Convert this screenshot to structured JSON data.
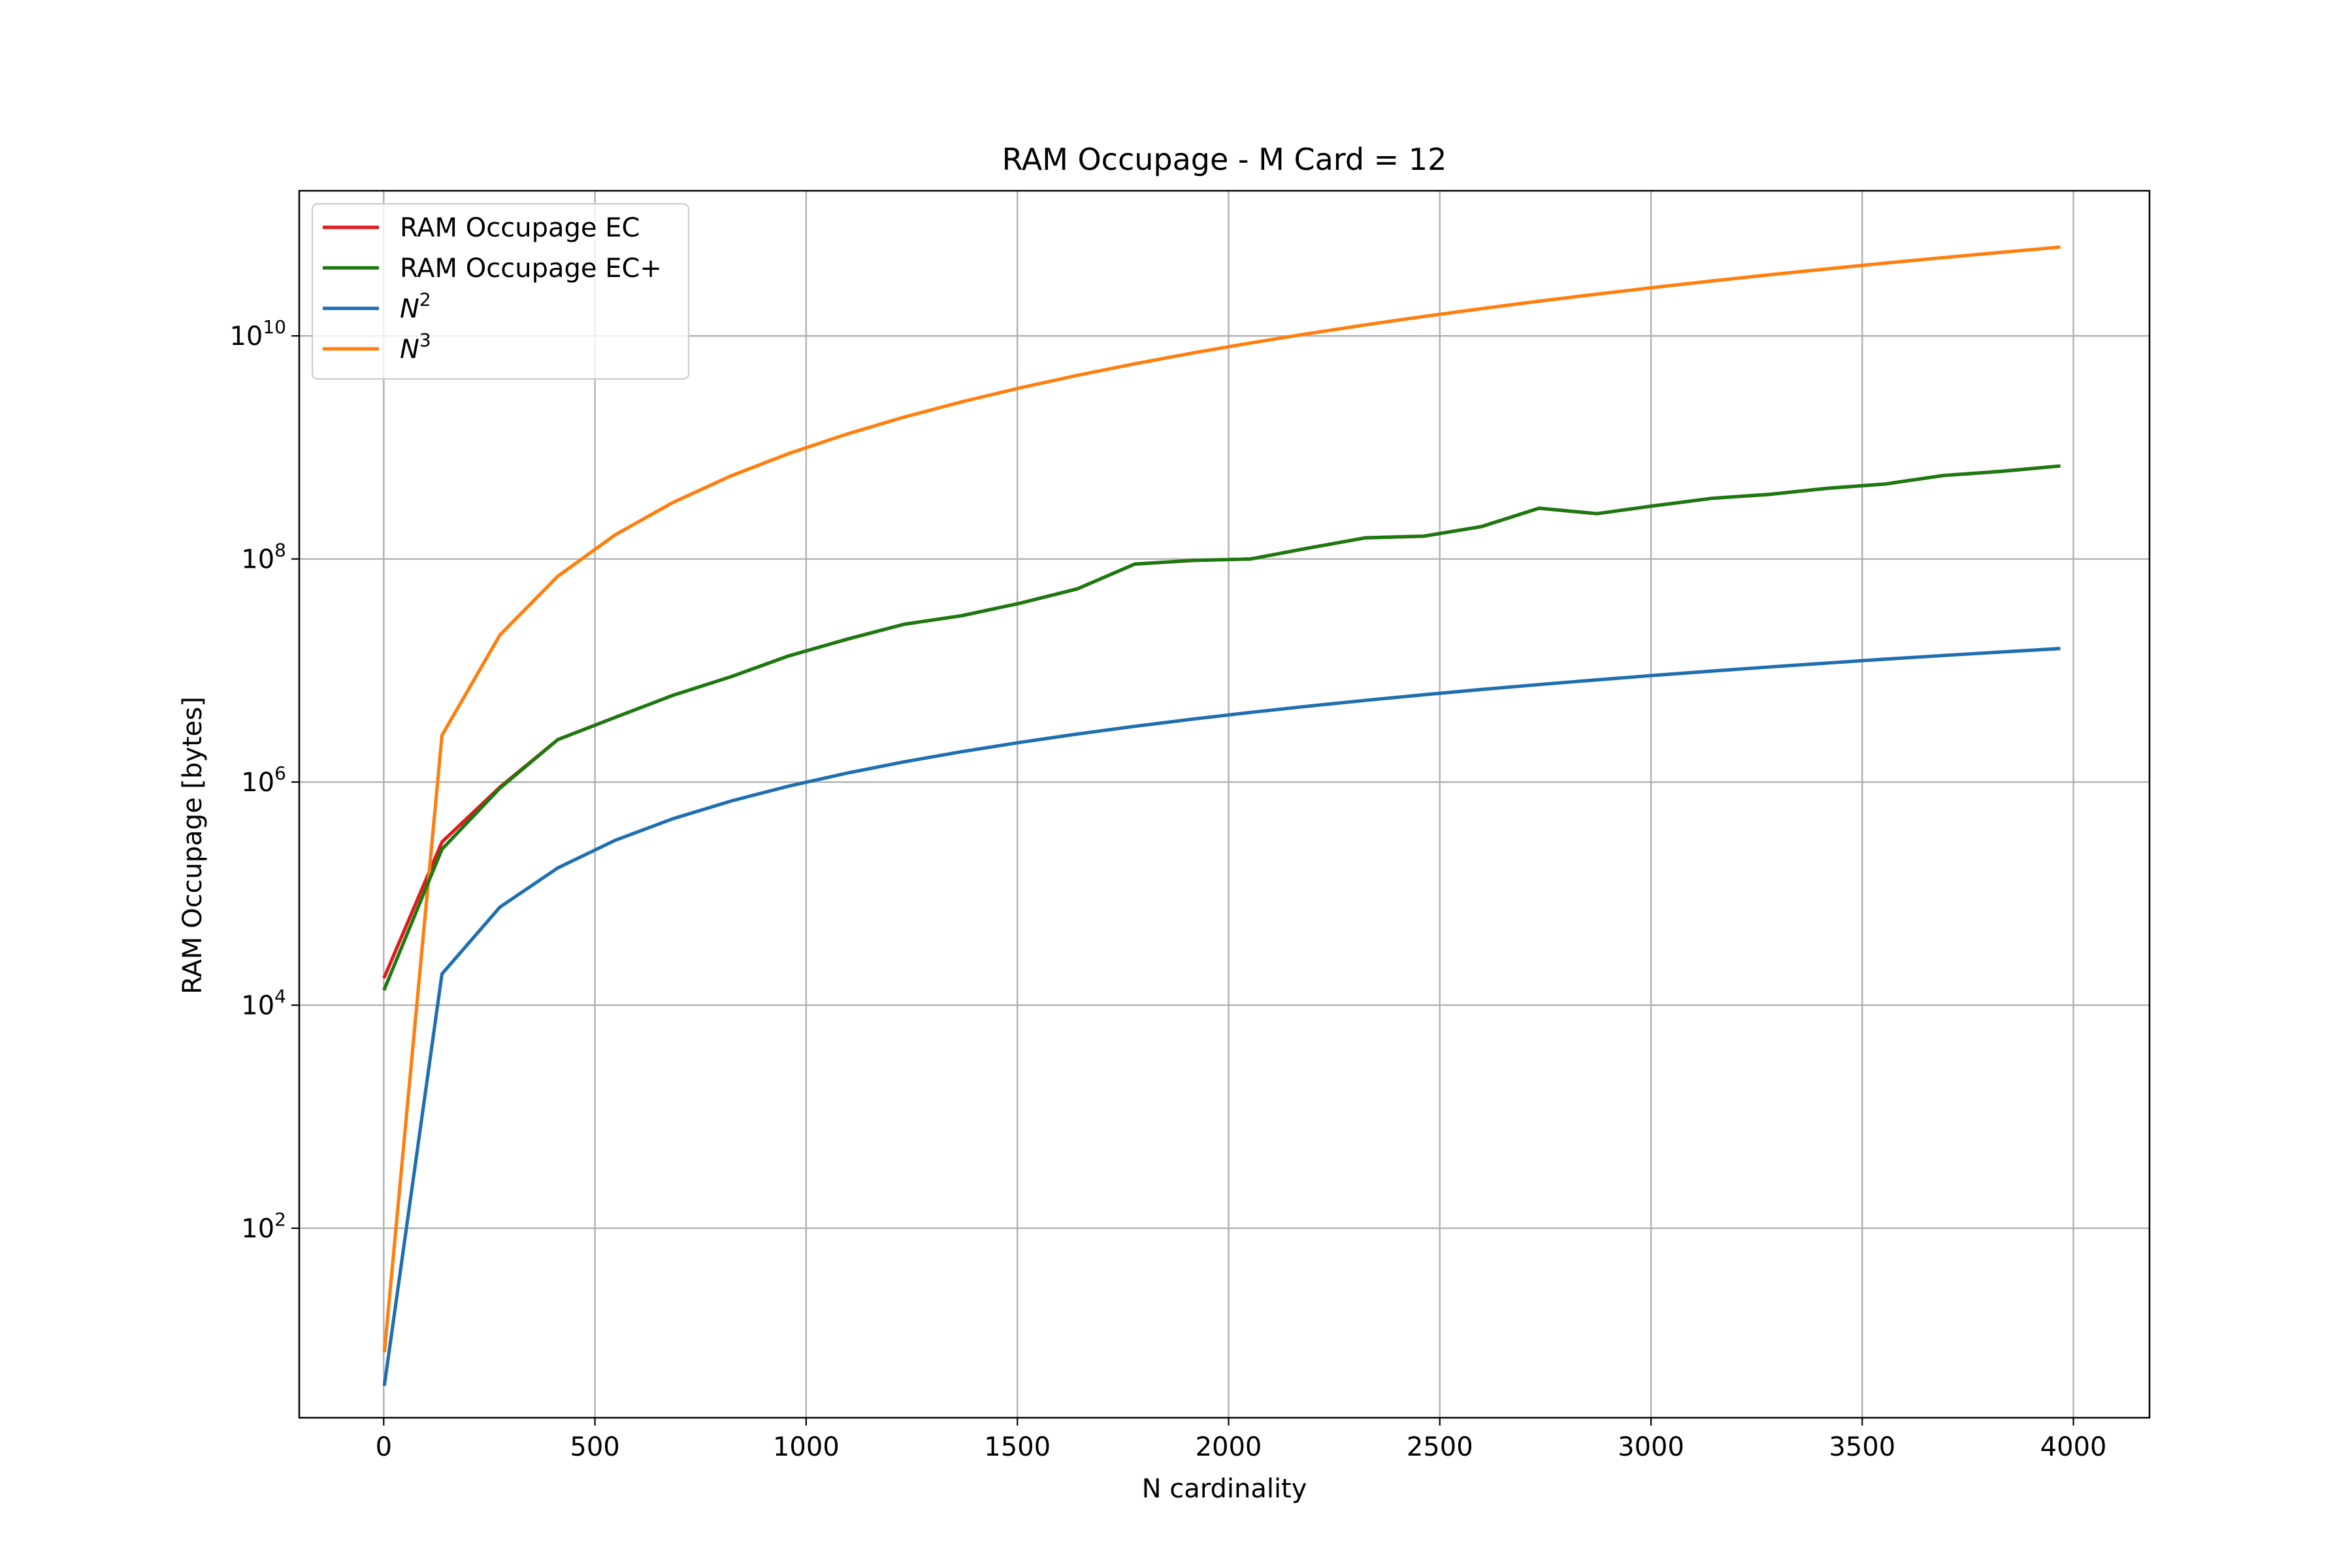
{
  "chart_data": {
    "type": "line",
    "title": "RAM Occupage - M Card = 12",
    "xlabel": "N cardinality",
    "ylabel": "RAM Occupage [bytes]",
    "xlim": [
      -200,
      4180
    ],
    "ylim": [
      2,
      200000000000.0
    ],
    "yscale": "log",
    "grid": true,
    "legend_position": "upper left",
    "x_ticks": [
      {
        "value": 0,
        "label": "0"
      },
      {
        "value": 500,
        "label": "500"
      },
      {
        "value": 1000,
        "label": "1000"
      },
      {
        "value": 1500,
        "label": "1500"
      },
      {
        "value": 2000,
        "label": "2000"
      },
      {
        "value": 2500,
        "label": "2500"
      },
      {
        "value": 3000,
        "label": "3000"
      },
      {
        "value": 3500,
        "label": "3500"
      },
      {
        "value": 4000,
        "label": "4000"
      }
    ],
    "y_ticks": [
      {
        "value": 100,
        "base": "10",
        "exp": "2"
      },
      {
        "value": 10000,
        "base": "10",
        "exp": "4"
      },
      {
        "value": 1000000,
        "base": "10",
        "exp": "6"
      },
      {
        "value": 100000000,
        "base": "10",
        "exp": "8"
      },
      {
        "value": 10000000000,
        "base": "10",
        "exp": "10"
      }
    ],
    "series": [
      {
        "name": "RAM Occupage EC",
        "label_base": "RAM Occupage EC",
        "label_exp": "",
        "color": "#e31a1c",
        "x": [
          2,
          138,
          275,
          412,
          548,
          685,
          822,
          958,
          1095,
          1232,
          1368,
          1505,
          1642,
          1778,
          1915,
          2052,
          2188,
          2325,
          2462,
          2598,
          2735,
          2872,
          3008,
          3145,
          3282,
          3418,
          3555,
          3692,
          3828,
          3965
        ],
        "y": [
          18000,
          290000,
          900000,
          2400000,
          3800000,
          6000000,
          8800000,
          13500000,
          19000000,
          26000000,
          31000000,
          40000000,
          54000000,
          90000000,
          97000000,
          100000000,
          125000000,
          155000000,
          160000000,
          195000000,
          285000000,
          255000000,
          300000000,
          350000000,
          380000000,
          430000000,
          470000000,
          560000000,
          610000000,
          680000000
        ]
      },
      {
        "name": "RAM Occupage EC+",
        "label_base": "RAM Occupage EC+",
        "label_exp": "",
        "color": "#1a7a10",
        "x": [
          2,
          138,
          275,
          412,
          548,
          685,
          822,
          958,
          1095,
          1232,
          1368,
          1505,
          1642,
          1778,
          1915,
          2052,
          2188,
          2325,
          2462,
          2598,
          2735,
          2872,
          3008,
          3145,
          3282,
          3418,
          3555,
          3692,
          3828,
          3965
        ],
        "y": [
          14000,
          250000,
          880000,
          2400000,
          3800000,
          6000000,
          8800000,
          13500000,
          19000000,
          26000000,
          31000000,
          40000000,
          54000000,
          90000000,
          97000000,
          100000000,
          125000000,
          155000000,
          160000000,
          195000000,
          285000000,
          255000000,
          300000000,
          350000000,
          380000000,
          430000000,
          470000000,
          560000000,
          610000000,
          680000000
        ]
      },
      {
        "name": "N^2",
        "label_base": "N",
        "label_exp": "2",
        "color": "#1f6fb0",
        "x": [
          2,
          138,
          275,
          412,
          548,
          685,
          822,
          958,
          1095,
          1232,
          1368,
          1505,
          1642,
          1778,
          1915,
          2052,
          2188,
          2325,
          2462,
          2598,
          2735,
          2872,
          3008,
          3145,
          3282,
          3418,
          3555,
          3692,
          3828,
          3965
        ],
        "y": [
          4,
          19044,
          75625,
          169744,
          300304,
          469225,
          675684,
          917764,
          1199025,
          1517824,
          1871424,
          2265025,
          2696164,
          3161284,
          3667225,
          4210704,
          4787344,
          5405625,
          6061444,
          6749604,
          7480225,
          8248384,
          9048064,
          9891025,
          10771524,
          11682724,
          12638025,
          13630864,
          14653584,
          15721225
        ]
      },
      {
        "name": "N^3",
        "label_base": "N",
        "label_exp": "3",
        "color": "#ff7f0e",
        "x": [
          2,
          138,
          275,
          412,
          548,
          685,
          822,
          958,
          1095,
          1232,
          1368,
          1505,
          1642,
          1778,
          1915,
          2052,
          2188,
          2325,
          2462,
          2598,
          2735,
          2872,
          3008,
          3145,
          3282,
          3418,
          3555,
          3692,
          3828,
          3965
        ],
        "y": [
          8,
          2628072,
          20796875,
          69934528,
          164566592,
          321419125,
          555412248,
          879217912,
          1312932375,
          1869959168,
          2560108032,
          3408862625,
          4427101288,
          5620762952,
          7022835875,
          8640364608,
          10474708672,
          12568078125,
          14923275128,
          17535471192,
          20458415375,
          23689358848,
          27216576512,
          31107273625,
          35352141768,
          39931570568,
          44928178875,
          50325149888,
          56093919552,
          62334657125
        ]
      }
    ]
  }
}
